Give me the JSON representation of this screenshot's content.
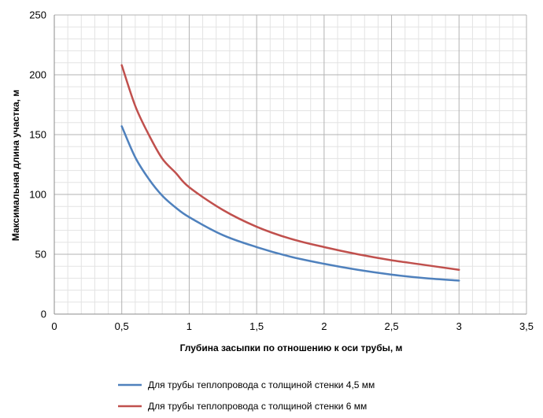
{
  "chart_data": {
    "type": "line",
    "title": "",
    "xlabel": "Глубина засыпки по отношению к оси трубы, м",
    "ylabel": "Максимальная длина участка, м",
    "xlim": [
      0,
      3.5
    ],
    "ylim": [
      0,
      250
    ],
    "x_ticks": [
      0,
      0.5,
      1,
      1.5,
      2,
      2.5,
      3,
      3.5
    ],
    "x_tick_labels": [
      "0",
      "0,5",
      "1",
      "1,5",
      "2",
      "2,5",
      "3",
      "3,5"
    ],
    "y_ticks": [
      0,
      50,
      100,
      150,
      200,
      250
    ],
    "y_tick_labels": [
      "0",
      "50",
      "100",
      "150",
      "200",
      "250"
    ],
    "grid": true,
    "minor_grid": true,
    "legend_position": "bottom",
    "series": [
      {
        "name": "Для трубы теплопровода с толщиной стенки 4,5 мм",
        "color": "#4f81bd",
        "x": [
          0.5,
          0.6,
          0.7,
          0.8,
          0.9,
          1.0,
          1.25,
          1.5,
          1.75,
          2.0,
          2.25,
          2.5,
          2.75,
          3.0
        ],
        "y": [
          157,
          131,
          113,
          99,
          89,
          81,
          66,
          56,
          48,
          42,
          37,
          33,
          30,
          28
        ]
      },
      {
        "name": "Для трубы теплопровода с толщиной стенки 6 мм",
        "color": "#c0504d",
        "x": [
          0.5,
          0.6,
          0.7,
          0.8,
          0.9,
          1.0,
          1.25,
          1.5,
          1.75,
          2.0,
          2.25,
          2.5,
          2.75,
          3.0
        ],
        "y": [
          208,
          174,
          150,
          130,
          118,
          106,
          87,
          73,
          63,
          56,
          50,
          45,
          41,
          37
        ]
      }
    ]
  }
}
